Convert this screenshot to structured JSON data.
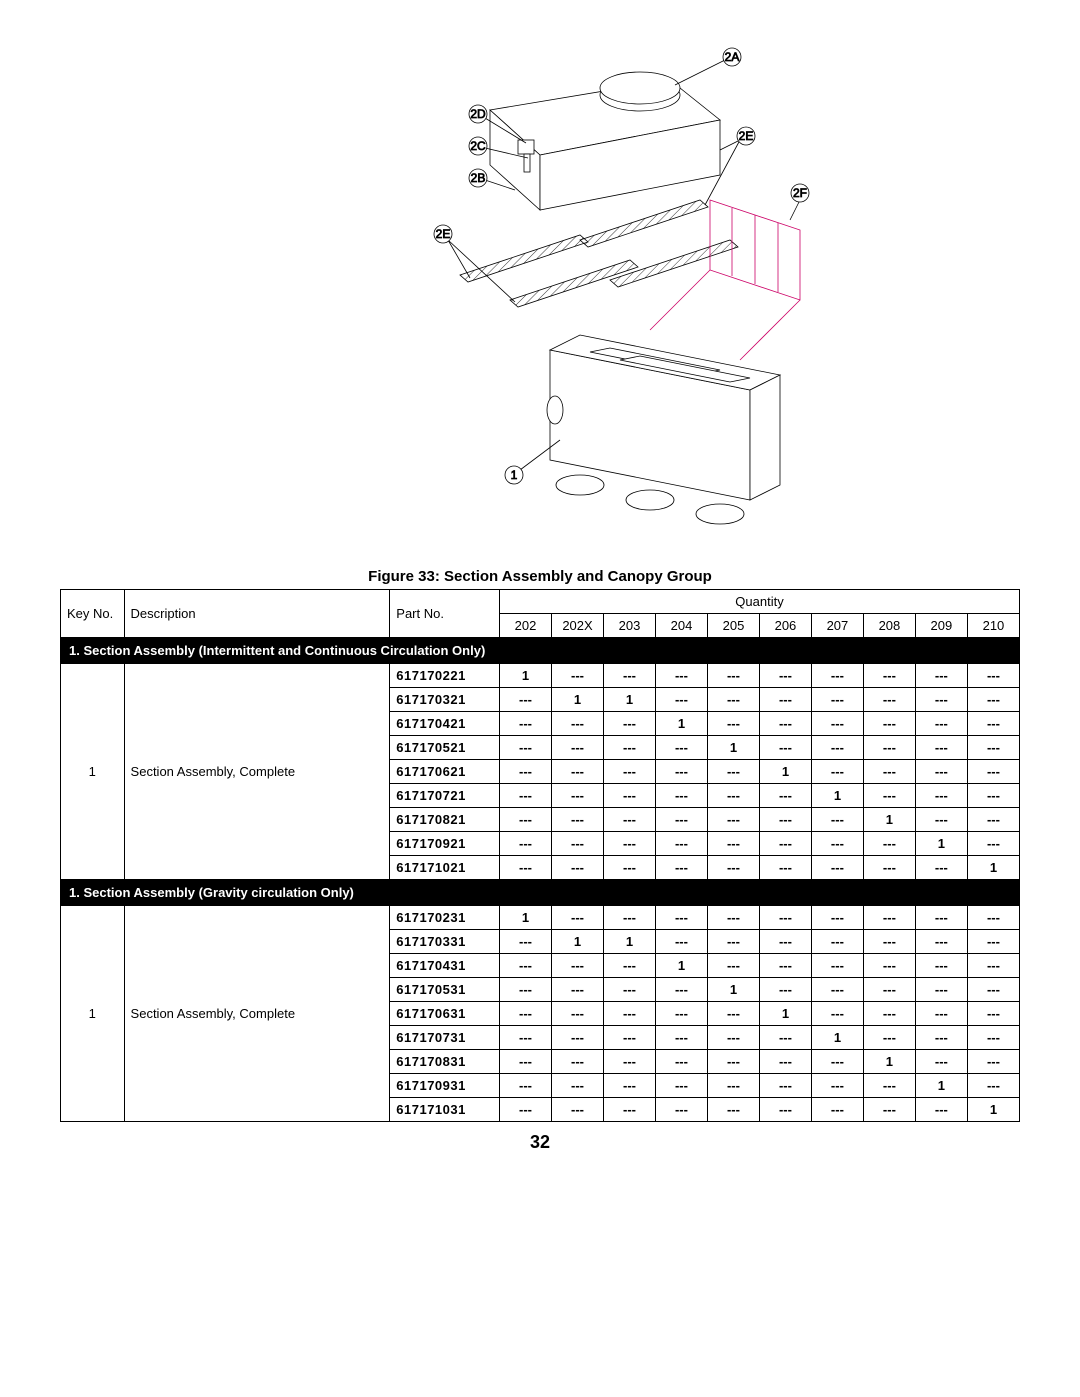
{
  "figure": {
    "caption": "Figure 33:  Section Assembly and Canopy Group",
    "callouts": [
      "2A",
      "2D",
      "2C",
      "2B",
      "2E",
      "2E",
      "2F",
      "1"
    ]
  },
  "table": {
    "headers": {
      "key": "Key No.",
      "desc": "Description",
      "part": "Part No.",
      "qty_group": "Quantity",
      "models": [
        "202",
        "202X",
        "203",
        "204",
        "205",
        "206",
        "207",
        "208",
        "209",
        "210"
      ]
    },
    "dash": "---",
    "sections": [
      {
        "title": "1. Section Assembly (Intermittent and Continuous Circulation Only)",
        "key": "1",
        "desc": "Section Assembly, Complete",
        "rows": [
          {
            "part": "617170221",
            "q": [
              "1",
              "---",
              "---",
              "---",
              "---",
              "---",
              "---",
              "---",
              "---",
              "---"
            ]
          },
          {
            "part": "617170321",
            "q": [
              "---",
              "1",
              "1",
              "---",
              "---",
              "---",
              "---",
              "---",
              "---",
              "---"
            ]
          },
          {
            "part": "617170421",
            "q": [
              "---",
              "---",
              "---",
              "1",
              "---",
              "---",
              "---",
              "---",
              "---",
              "---"
            ]
          },
          {
            "part": "617170521",
            "q": [
              "---",
              "---",
              "---",
              "---",
              "1",
              "---",
              "---",
              "---",
              "---",
              "---"
            ]
          },
          {
            "part": "617170621",
            "q": [
              "---",
              "---",
              "---",
              "---",
              "---",
              "1",
              "---",
              "---",
              "---",
              "---"
            ]
          },
          {
            "part": "617170721",
            "q": [
              "---",
              "---",
              "---",
              "---",
              "---",
              "---",
              "1",
              "---",
              "---",
              "---"
            ]
          },
          {
            "part": "617170821",
            "q": [
              "---",
              "---",
              "---",
              "---",
              "---",
              "---",
              "---",
              "1",
              "---",
              "---"
            ]
          },
          {
            "part": "617170921",
            "q": [
              "---",
              "---",
              "---",
              "---",
              "---",
              "---",
              "---",
              "---",
              "1",
              "---"
            ]
          },
          {
            "part": "617171021",
            "q": [
              "---",
              "---",
              "---",
              "---",
              "---",
              "---",
              "---",
              "---",
              "---",
              "1"
            ]
          }
        ]
      },
      {
        "title": "1.  Section Assembly (Gravity circulation Only)",
        "key": "1",
        "desc": "Section Assembly, Complete",
        "rows": [
          {
            "part": "617170231",
            "q": [
              "1",
              "---",
              "---",
              "---",
              "---",
              "---",
              "---",
              "---",
              "---",
              "---"
            ]
          },
          {
            "part": "617170331",
            "q": [
              "---",
              "1",
              "1",
              "---",
              "---",
              "---",
              "---",
              "---",
              "---",
              "---"
            ]
          },
          {
            "part": "617170431",
            "q": [
              "---",
              "---",
              "---",
              "1",
              "---",
              "---",
              "---",
              "---",
              "---",
              "---"
            ]
          },
          {
            "part": "617170531",
            "q": [
              "---",
              "---",
              "---",
              "---",
              "1",
              "---",
              "---",
              "---",
              "---",
              "---"
            ]
          },
          {
            "part": "617170631",
            "q": [
              "---",
              "---",
              "---",
              "---",
              "---",
              "1",
              "---",
              "---",
              "---",
              "---"
            ]
          },
          {
            "part": "617170731",
            "q": [
              "---",
              "---",
              "---",
              "---",
              "---",
              "---",
              "1",
              "---",
              "---",
              "---"
            ]
          },
          {
            "part": "617170831",
            "q": [
              "---",
              "---",
              "---",
              "---",
              "---",
              "---",
              "---",
              "1",
              "---",
              "---"
            ]
          },
          {
            "part": "617170931",
            "q": [
              "---",
              "---",
              "---",
              "---",
              "---",
              "---",
              "---",
              "---",
              "1",
              "---"
            ]
          },
          {
            "part": "617171031",
            "q": [
              "---",
              "---",
              "---",
              "---",
              "---",
              "---",
              "---",
              "---",
              "---",
              "1"
            ]
          }
        ]
      }
    ]
  },
  "page_number": "32",
  "style": {
    "stroke": "#000000",
    "accent_stroke": "#cc0066",
    "stroke_width": 0.8,
    "hatch_angle": 45
  }
}
